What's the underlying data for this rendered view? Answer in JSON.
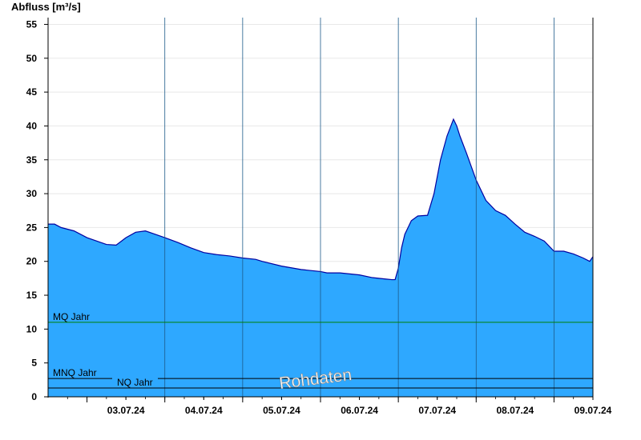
{
  "chart_data": {
    "type": "area",
    "ylabel": "Abfluss [m³/s]",
    "ylim": [
      0,
      56
    ],
    "yticks": [
      0,
      5,
      10,
      15,
      20,
      25,
      30,
      35,
      40,
      45,
      50,
      55
    ],
    "xlim": [
      "2024-07-02T12:00",
      "2024-07-09T12:00"
    ],
    "xticks": [
      "03.07.24",
      "04.07.24",
      "05.07.24",
      "06.07.24",
      "07.07.24",
      "08.07.24",
      "09.07.24"
    ],
    "grid": true,
    "colors": {
      "fill": "#2ea8ff",
      "line": "#0000a0",
      "mq": "#008000",
      "ref": "#000000",
      "grid": "#e8e8e8"
    },
    "series": [
      {
        "x": [
          "2024-07-02T12:00",
          "2024-07-02T14:00",
          "2024-07-02T16:00",
          "2024-07-02T20:00",
          "2024-07-03T00:00",
          "2024-07-03T03:00",
          "2024-07-03T06:00",
          "2024-07-03T09:00",
          "2024-07-03T12:00",
          "2024-07-03T15:00",
          "2024-07-03T18:00",
          "2024-07-03T21:00",
          "2024-07-04T00:00",
          "2024-07-04T04:00",
          "2024-07-04T08:00",
          "2024-07-04T12:00",
          "2024-07-04T16:00",
          "2024-07-04T20:00",
          "2024-07-05T00:00",
          "2024-07-05T04:00",
          "2024-07-05T06:00",
          "2024-07-05T12:00",
          "2024-07-05T18:00",
          "2024-07-06T00:00",
          "2024-07-06T02:00",
          "2024-07-06T06:00",
          "2024-07-06T12:00",
          "2024-07-06T16:00",
          "2024-07-06T20:00",
          "2024-07-06T22:00",
          "2024-07-06T23:00",
          "2024-07-07T00:00",
          "2024-07-07T01:00",
          "2024-07-07T02:00",
          "2024-07-07T04:00",
          "2024-07-07T06:00",
          "2024-07-07T09:00",
          "2024-07-07T11:00",
          "2024-07-07T13:00",
          "2024-07-07T15:00",
          "2024-07-07T17:00",
          "2024-07-07T18:00",
          "2024-07-07T19:00",
          "2024-07-07T21:00",
          "2024-07-08T00:00",
          "2024-07-08T03:00",
          "2024-07-08T06:00",
          "2024-07-08T09:00",
          "2024-07-08T12:00",
          "2024-07-08T15:00",
          "2024-07-08T18:00",
          "2024-07-08T21:00",
          "2024-07-09T00:00",
          "2024-07-09T03:00",
          "2024-07-09T06:00",
          "2024-07-09T09:00",
          "2024-07-09T11:00",
          "2024-07-09T12:00"
        ],
        "values": [
          25.5,
          25.5,
          25.0,
          24.5,
          23.5,
          23.0,
          22.5,
          22.4,
          23.5,
          24.3,
          24.5,
          24.0,
          23.5,
          22.8,
          22.0,
          21.3,
          21.0,
          20.8,
          20.5,
          20.3,
          20.0,
          19.3,
          18.8,
          18.5,
          18.3,
          18.3,
          18.0,
          17.6,
          17.4,
          17.3,
          17.3,
          19.0,
          22.0,
          24.0,
          26.0,
          26.7,
          26.8,
          30.0,
          35.0,
          38.5,
          41.0,
          40.0,
          38.5,
          36.0,
          32.0,
          29.0,
          27.5,
          26.8,
          25.5,
          24.3,
          23.7,
          23.0,
          21.5,
          21.5,
          21.1,
          20.5,
          20.0,
          20.7
        ]
      }
    ],
    "references": [
      {
        "name": "MQ Jahr",
        "value": 11.0
      },
      {
        "name": "MNQ Jahr",
        "value": 2.7
      },
      {
        "name": "NQ Jahr",
        "value": 1.3
      }
    ],
    "annotation": "Rohdaten"
  }
}
